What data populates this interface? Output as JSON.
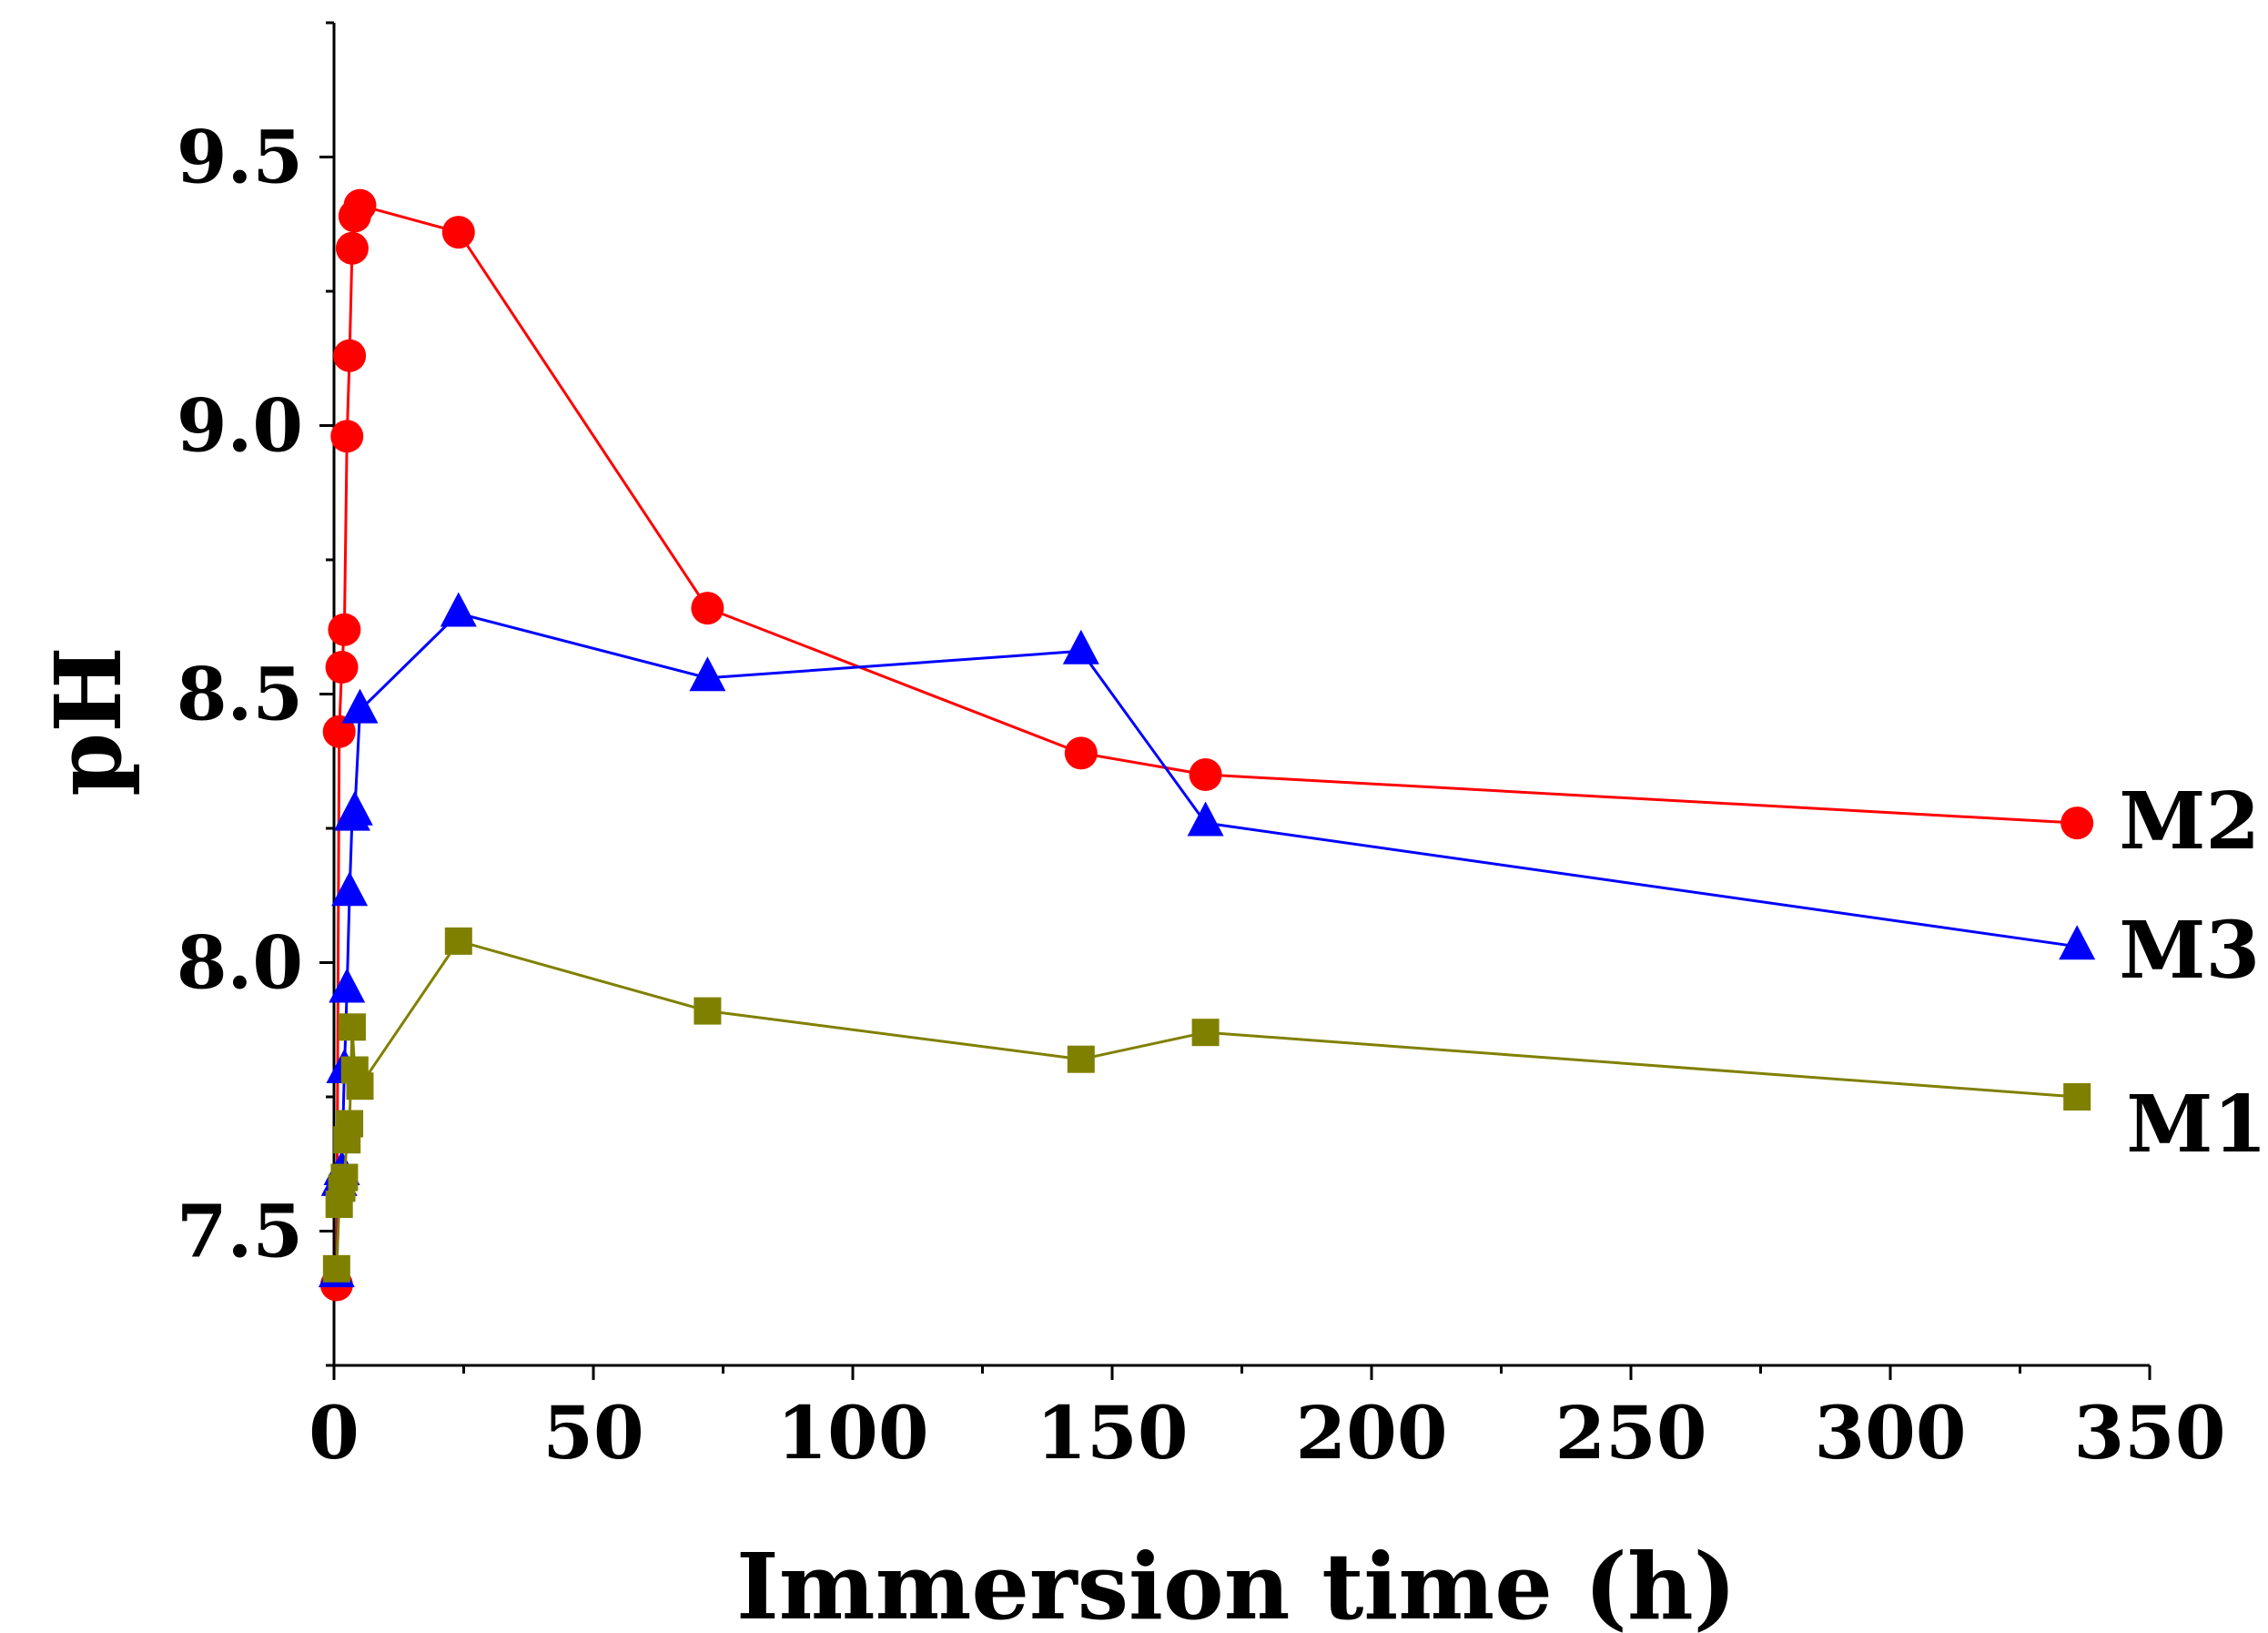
{
  "chart_data": {
    "type": "line",
    "title": "",
    "xlabel": "Immersion time (h)",
    "ylabel": "pH",
    "xlim": [
      0,
      350
    ],
    "ylim": [
      7.25,
      9.75
    ],
    "xticks": [
      0,
      50,
      100,
      150,
      200,
      250,
      300,
      350
    ],
    "xtick_labels": [
      "0",
      "50",
      "100",
      "150",
      "200",
      "250",
      "300",
      "350"
    ],
    "yticks": [
      7.5,
      8.0,
      8.5,
      9.0,
      9.5
    ],
    "ytick_labels": [
      "7.5",
      "8.0",
      "8.5",
      "9.0",
      "9.5"
    ],
    "grid": false,
    "legend": "series labels at right end of each line",
    "series": [
      {
        "name": "M2",
        "color": "#ff0000",
        "marker": "circle",
        "x": [
          0.5,
          1,
          1.5,
          2,
          2.5,
          3,
          3.5,
          4,
          5,
          24,
          72,
          144,
          168,
          336
        ],
        "y": [
          7.4,
          8.43,
          8.55,
          8.62,
          8.98,
          9.13,
          9.33,
          9.39,
          9.41,
          9.36,
          8.66,
          8.39,
          8.35,
          8.26
        ]
      },
      {
        "name": "M3",
        "color": "#0000ff",
        "marker": "triangle",
        "x": [
          0.5,
          1,
          1.5,
          2,
          2.5,
          3,
          3.5,
          4,
          5,
          24,
          72,
          144,
          168,
          336
        ],
        "y": [
          7.42,
          7.59,
          7.61,
          7.8,
          7.95,
          8.13,
          8.27,
          8.28,
          8.47,
          8.65,
          8.53,
          8.58,
          8.26,
          8.03
        ]
      },
      {
        "name": "M1",
        "color": "#808000",
        "marker": "square",
        "x": [
          0.5,
          1,
          1.5,
          2,
          2.5,
          3,
          3.5,
          4,
          5,
          24,
          72,
          144,
          168,
          336
        ],
        "y": [
          7.43,
          7.55,
          7.58,
          7.6,
          7.67,
          7.7,
          7.88,
          7.8,
          7.77,
          8.04,
          7.91,
          7.82,
          7.87,
          7.75
        ]
      }
    ]
  }
}
